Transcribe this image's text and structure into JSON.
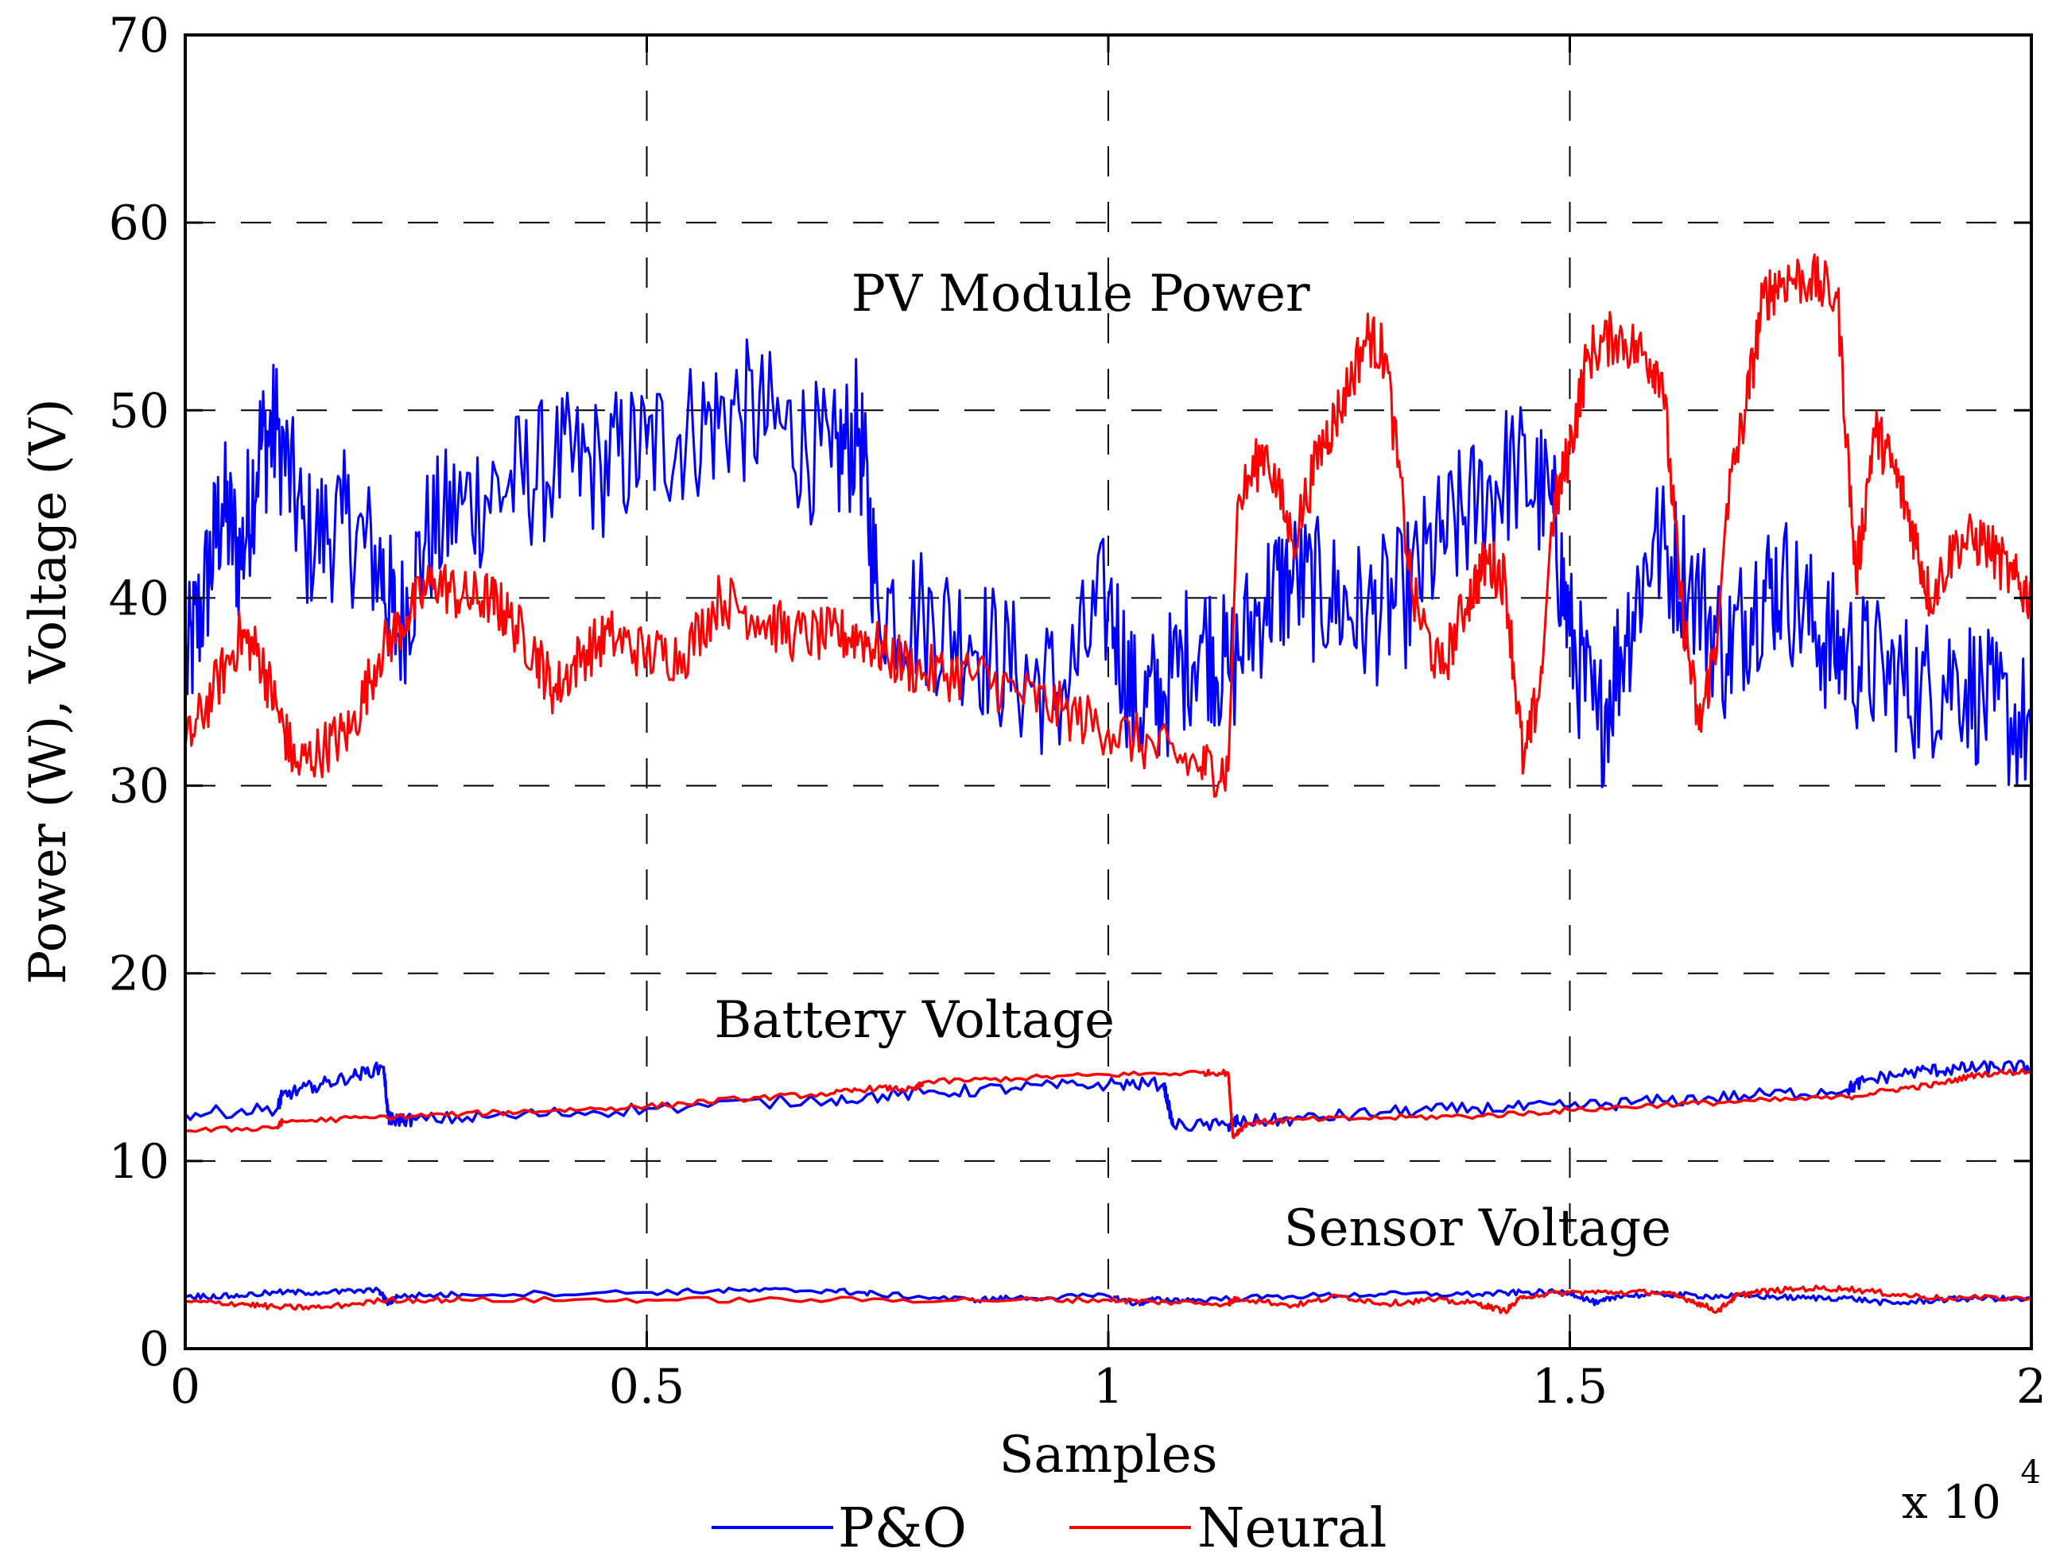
{
  "chart_data": {
    "type": "line",
    "title": "",
    "xlabel": "Samples",
    "ylabel": "Power (W), Voltage (V)",
    "xlim": [
      0,
      20000
    ],
    "ylim": [
      0,
      70
    ],
    "x_multiplier": "x 10",
    "x_multiplier_exponent": "4",
    "grid": true,
    "x_ticks": [
      0,
      5000,
      10000,
      15000,
      20000
    ],
    "x_tick_labels": [
      "0",
      "0.5",
      "1",
      "1.5",
      "2"
    ],
    "y_ticks": [
      0,
      10,
      20,
      30,
      40,
      50,
      60,
      70
    ],
    "y_tick_labels": [
      "0",
      "10",
      "20",
      "30",
      "40",
      "50",
      "60",
      "70"
    ],
    "annotations": [
      {
        "text": "PV Module Power",
        "x": 9700,
        "y": 55.3
      },
      {
        "text": "Battery Voltage",
        "x": 7900,
        "y": 16.6
      },
      {
        "text": "Sensor Voltage",
        "x": 14000,
        "y": 5.5
      }
    ],
    "legend": {
      "position": "bottom-center",
      "entries": [
        "P&O",
        "Neural"
      ]
    },
    "series": [
      {
        "name": "P&O",
        "group": "PV Module Power",
        "color": "#0000ff",
        "noise": 4,
        "x": [
          0,
          200,
          400,
          600,
          800,
          1000,
          1300,
          1700,
          2100,
          2300,
          2600,
          3000,
          3500,
          4000,
          4500,
          5000,
          5500,
          6000,
          6500,
          7000,
          7300,
          7500,
          8000,
          8500,
          9000,
          9500,
          10000,
          10300,
          10600,
          11000,
          11300,
          11700,
          12000,
          12400,
          12800,
          13200,
          13600,
          14000,
          14400,
          14800,
          15000,
          15300,
          15600,
          15900,
          16300,
          16700,
          17000,
          17300,
          17700,
          18000,
          18400,
          18800,
          19200,
          19600,
          20000
        ],
        "y": [
          36,
          40,
          45,
          42,
          48,
          49,
          43,
          44,
          42,
          38,
          43,
          45,
          46,
          47,
          47,
          48,
          49,
          50,
          49,
          47,
          49,
          40,
          39,
          38,
          36,
          35,
          40,
          34,
          35,
          38,
          36,
          40,
          41,
          40,
          39,
          40,
          43,
          45,
          47,
          45,
          38,
          33,
          38,
          43,
          41,
          37,
          40,
          41,
          38,
          37,
          36,
          35,
          36,
          34,
          33
        ]
      },
      {
        "name": "Neural",
        "group": "PV Module Power",
        "color": "#ff0000",
        "noise": 1.5,
        "x": [
          0,
          300,
          600,
          800,
          1000,
          1200,
          1500,
          1800,
          2100,
          2400,
          2700,
          3000,
          3300,
          3500,
          3800,
          4000,
          4300,
          4600,
          5000,
          5400,
          5800,
          6200,
          6600,
          7000,
          7300,
          7600,
          8000,
          8500,
          9000,
          9500,
          10000,
          10500,
          11000,
          11300,
          11400,
          11700,
          12000,
          12300,
          12500,
          12800,
          13000,
          13300,
          13600,
          13900,
          14100,
          14300,
          14500,
          14700,
          14800,
          15000,
          15200,
          15500,
          15800,
          16000,
          16200,
          16400,
          16600,
          16700,
          16900,
          17100,
          17300,
          17600,
          17900,
          18100,
          18300,
          18500,
          18700,
          18900,
          19200,
          19500,
          19800,
          20000
        ],
        "y": [
          32,
          35,
          38,
          37,
          34,
          31,
          32,
          33,
          37,
          39,
          41,
          40,
          40,
          39,
          37,
          35,
          37,
          38,
          37,
          37,
          40,
          39,
          38,
          38,
          38,
          37,
          36,
          36,
          35,
          34,
          33,
          32,
          31,
          30.8,
          45,
          48,
          43,
          48,
          50,
          54,
          53,
          40,
          36,
          40,
          42,
          41,
          31,
          36,
          44,
          48,
          53,
          54,
          53,
          52,
          40,
          33,
          38,
          45,
          50,
          56,
          57,
          57,
          56,
          41,
          49,
          47,
          44,
          40,
          43,
          43,
          41,
          40
        ]
      },
      {
        "name": "P&O",
        "group": "Battery Voltage",
        "color": "#0000ff",
        "noise": 0.35,
        "x": [
          0,
          1000,
          1050,
          1400,
          1800,
          2150,
          2200,
          2250,
          2500,
          3500,
          5000,
          7000,
          8000,
          9000,
          10000,
          10600,
          10700,
          11300,
          11400,
          12000,
          13000,
          14000,
          15000,
          16000,
          17000,
          18000,
          18200,
          18800,
          19200,
          19600,
          20000
        ],
        "y": [
          12.5,
          12.8,
          13.5,
          14,
          14.5,
          15,
          12.3,
          12.2,
          12.2,
          12.4,
          12.8,
          13.3,
          13.6,
          13.9,
          14.1,
          14.1,
          11.9,
          11.9,
          12.1,
          12.2,
          12.6,
          12.8,
          12.9,
          13.2,
          13.5,
          13.8,
          14.3,
          14.8,
          14.9,
          15,
          15
        ]
      },
      {
        "name": "Neural",
        "group": "Battery Voltage",
        "color": "#ff0000",
        "noise": 0.15,
        "x": [
          0,
          1000,
          1050,
          2000,
          3000,
          4000,
          5000,
          6000,
          7000,
          7500,
          7900,
          8000,
          9000,
          10000,
          11000,
          11300,
          11350,
          11500,
          12000,
          13000,
          14000,
          15000,
          16000,
          17000,
          18000,
          18500,
          19000,
          19400,
          20000
        ],
        "y": [
          11.6,
          11.8,
          12.1,
          12.3,
          12.5,
          12.7,
          12.9,
          13.3,
          13.6,
          13.9,
          13.8,
          14.2,
          14.4,
          14.6,
          14.7,
          14.7,
          11.3,
          12,
          12.2,
          12.3,
          12.4,
          12.7,
          13,
          13.2,
          13.4,
          13.8,
          14.1,
          14.6,
          14.8
        ]
      },
      {
        "name": "P&O",
        "group": "Sensor Voltage",
        "color": "#0000ff",
        "noise": 0.15,
        "x": [
          0,
          500,
          1000,
          1500,
          2100,
          2200,
          2300,
          3000,
          5000,
          6000,
          7000,
          7500,
          8500,
          9000,
          10000,
          10300,
          10500,
          11000,
          12000,
          13000,
          14000,
          14500,
          15000,
          15300,
          15500,
          16000,
          16500,
          17000,
          17500,
          18000,
          18500,
          19000,
          19500,
          20000
        ],
        "y": [
          2.8,
          2.8,
          3,
          3,
          3.1,
          2.4,
          2.8,
          2.9,
          3,
          3.1,
          3.1,
          2.9,
          2.6,
          2.7,
          2.8,
          2.4,
          2.6,
          2.6,
          2.8,
          2.9,
          2.9,
          3,
          3,
          2.4,
          2.8,
          2.9,
          2.8,
          2.8,
          2.7,
          2.7,
          2.4,
          2.6,
          2.7,
          2.6
        ]
      },
      {
        "name": "Neural",
        "group": "Sensor Voltage",
        "color": "#ff0000",
        "noise": 0.15,
        "x": [
          0,
          600,
          1000,
          1500,
          2200,
          3000,
          5000,
          7000,
          9000,
          10000,
          10500,
          11300,
          11400,
          12000,
          12500,
          13000,
          13500,
          14000,
          14300,
          14500,
          15000,
          15500,
          16000,
          16300,
          16600,
          16800,
          17000,
          17500,
          18000,
          18500,
          19000,
          20000
        ],
        "y": [
          2.5,
          2.4,
          2.2,
          2.2,
          2.6,
          2.6,
          2.6,
          2.6,
          2.6,
          2.6,
          2.5,
          2.4,
          2.7,
          2.3,
          2.8,
          2.4,
          2.6,
          2.4,
          2,
          2.8,
          3,
          3,
          3,
          2.6,
          2,
          2.8,
          3,
          3.2,
          3.2,
          2.9,
          2.7,
          2.7
        ]
      }
    ]
  }
}
